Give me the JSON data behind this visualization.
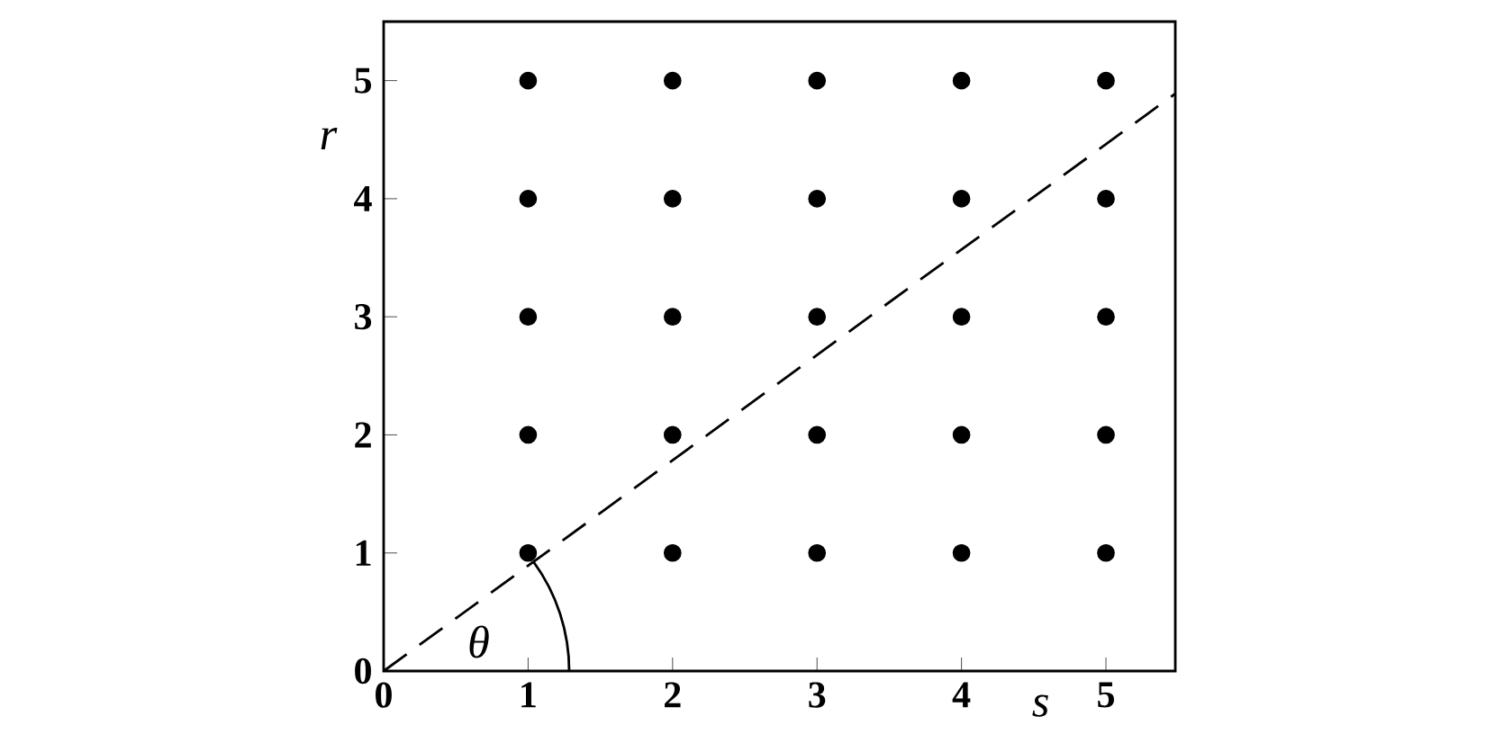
{
  "chart_data": {
    "type": "scatter",
    "xlabel": "s",
    "ylabel": "r",
    "xlim": [
      0,
      5.48
    ],
    "ylim": [
      0,
      5.5
    ],
    "xticks": [
      0,
      1,
      2,
      3,
      4,
      5
    ],
    "yticks": [
      0,
      1,
      2,
      3,
      4,
      5
    ],
    "grid": false,
    "series": [
      {
        "color": "#000000",
        "marker": "circle",
        "x": [
          1,
          2,
          3,
          4,
          5,
          1,
          2,
          3,
          4,
          5,
          1,
          2,
          3,
          4,
          5,
          1,
          2,
          3,
          4,
          5,
          1,
          2,
          3,
          4,
          5
        ],
        "values": [
          1,
          1,
          1,
          1,
          1,
          2,
          2,
          2,
          2,
          2,
          3,
          3,
          3,
          3,
          3,
          4,
          4,
          4,
          4,
          4,
          5,
          5,
          5,
          5,
          5
        ]
      },
      {
        "type": "line",
        "color": "#000000",
        "line_style": "dashed",
        "marker": "none",
        "x": [
          0,
          5.48
        ],
        "values": [
          0,
          4.89
        ]
      }
    ],
    "annotations": [
      "θ"
    ]
  }
}
